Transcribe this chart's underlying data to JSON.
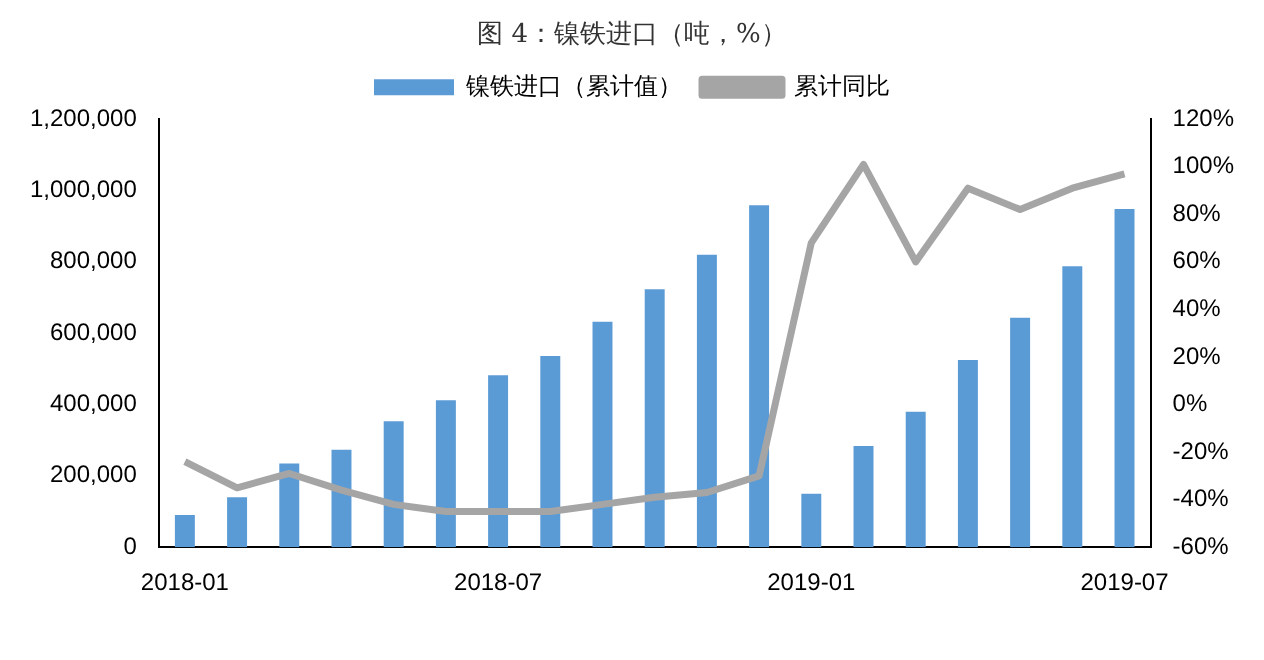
{
  "chart_data": {
    "type": "bar",
    "title": "图 4：镍铁进口（吨，%）",
    "categories": [
      "2018-01",
      null,
      null,
      null,
      null,
      null,
      "2018-07",
      null,
      null,
      null,
      null,
      null,
      "2019-01",
      null,
      null,
      null,
      null,
      null,
      "2019-07"
    ],
    "series": [
      {
        "name": "镍铁进口（累计值）",
        "color": "#5b9bd5",
        "values": [
          90000,
          140000,
          235000,
          273000,
          353000,
          412000,
          482000,
          536000,
          632000,
          723000,
          820000,
          959000,
          150000,
          284000,
          380000,
          525000,
          643000,
          788000,
          948000
        ]
      },
      {
        "name": "累计同比",
        "type": "line",
        "axis": "y2",
        "color": "#a5a5a5",
        "values": [
          -24,
          -35,
          -29,
          -36,
          -42,
          -45,
          -45,
          -45,
          -42,
          -39,
          -37,
          -30,
          68,
          101,
          60,
          91,
          82,
          91,
          97
        ]
      }
    ],
    "ylim": [
      0,
      1200000
    ],
    "yticks": [
      0,
      {
        "value": 200000,
        "label": "200,000"
      },
      {
        "value": 400000,
        "label": "400,000"
      },
      {
        "value": 600000,
        "label": "600,000"
      },
      {
        "value": 800000,
        "label": "800,000"
      },
      {
        "value": 1000000,
        "label": "1,000,000"
      },
      {
        "value": 1200000,
        "label": "1,200,000"
      }
    ],
    "y2lim": [
      -60,
      120
    ],
    "y2ticks": [
      {
        "value": -60,
        "label": "-60%"
      },
      {
        "value": -40,
        "label": "-40%"
      },
      {
        "value": -20,
        "label": "-20%"
      },
      {
        "value": 0,
        "label": "0%"
      },
      {
        "value": 20,
        "label": "20%"
      },
      {
        "value": 40,
        "label": "40%"
      },
      {
        "value": 60,
        "label": "60%"
      },
      {
        "value": 80,
        "label": "80%"
      },
      {
        "value": 100,
        "label": "100%"
      },
      {
        "value": 120,
        "label": "120%"
      }
    ],
    "legend": "top",
    "grid": false,
    "marker": "none"
  }
}
